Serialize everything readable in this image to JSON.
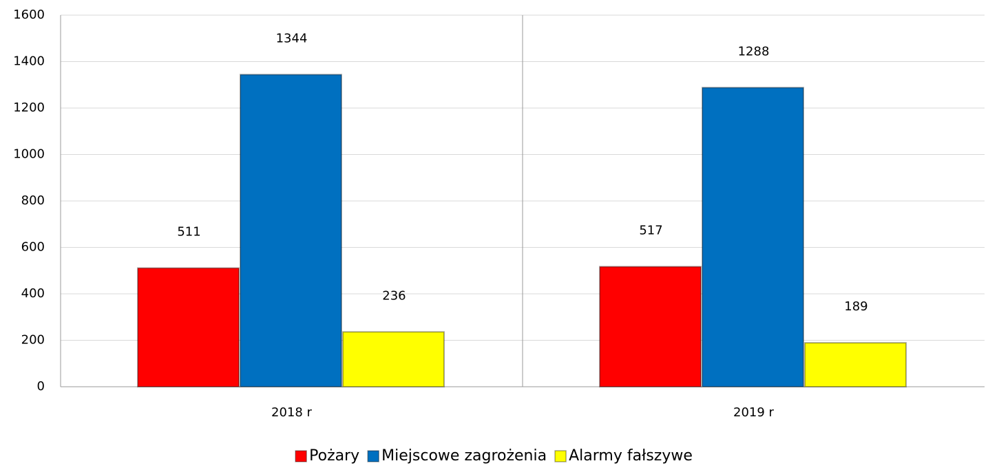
{
  "chart_data": {
    "type": "bar",
    "categories": [
      "2018 r",
      "2019 r"
    ],
    "series": [
      {
        "name": "Pożary",
        "color": "#ff0000",
        "values": [
          511,
          517
        ]
      },
      {
        "name": "Miejscowe zagrożenia",
        "color": "#0070c0",
        "values": [
          1344,
          1288
        ]
      },
      {
        "name": "Alarmy fałszywe",
        "color": "#ffff00",
        "values": [
          236,
          189
        ]
      }
    ],
    "ylim": [
      0,
      1600
    ],
    "yticks": [
      0,
      200,
      400,
      600,
      800,
      1000,
      1200,
      1400,
      1600
    ],
    "grid": true,
    "legend": "bottom"
  }
}
